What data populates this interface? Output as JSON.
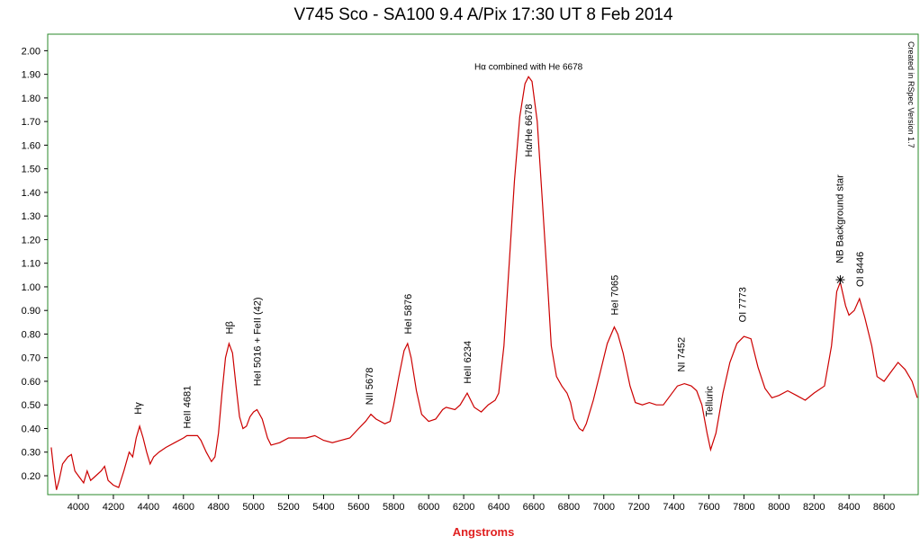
{
  "chart_data": {
    "type": "line",
    "title": "V745 Sco - SA100 9.4 A/Pix 17:30 UT 8 Feb 2014",
    "x_label": "Angstroms",
    "credit": "Created in RSpec Version 1.7",
    "color": "#cc0000",
    "x": [
      3845,
      3860,
      3875,
      3890,
      3910,
      3940,
      3960,
      3980,
      4000,
      4030,
      4050,
      4070,
      4100,
      4130,
      4150,
      4170,
      4200,
      4230,
      4260,
      4290,
      4310,
      4330,
      4350,
      4370,
      4390,
      4410,
      4430,
      4460,
      4500,
      4550,
      4600,
      4620,
      4650,
      4680,
      4700,
      4730,
      4760,
      4780,
      4800,
      4820,
      4840,
      4860,
      4880,
      4900,
      4920,
      4940,
      4960,
      4980,
      5000,
      5020,
      5050,
      5080,
      5100,
      5150,
      5200,
      5300,
      5350,
      5400,
      5450,
      5500,
      5550,
      5600,
      5640,
      5670,
      5700,
      5750,
      5780,
      5800,
      5830,
      5860,
      5880,
      5900,
      5930,
      5960,
      6000,
      6040,
      6080,
      6100,
      6150,
      6180,
      6220,
      6260,
      6300,
      6340,
      6380,
      6400,
      6430,
      6460,
      6490,
      6520,
      6550,
      6570,
      6590,
      6620,
      6650,
      6680,
      6700,
      6730,
      6760,
      6790,
      6810,
      6830,
      6860,
      6880,
      6900,
      6940,
      6980,
      7020,
      7060,
      7080,
      7110,
      7150,
      7180,
      7220,
      7260,
      7300,
      7340,
      7380,
      7420,
      7460,
      7500,
      7530,
      7560,
      7590,
      7610,
      7640,
      7680,
      7720,
      7760,
      7800,
      7840,
      7880,
      7920,
      7960,
      8000,
      8050,
      8100,
      8150,
      8200,
      8260,
      8300,
      8330,
      8350,
      8380,
      8400,
      8430,
      8460,
      8490,
      8530,
      8560,
      8600,
      8640,
      8680,
      8720,
      8760,
      8790
    ],
    "values": [
      0.32,
      0.22,
      0.14,
      0.18,
      0.25,
      0.28,
      0.29,
      0.22,
      0.2,
      0.17,
      0.22,
      0.18,
      0.2,
      0.22,
      0.24,
      0.18,
      0.16,
      0.15,
      0.22,
      0.3,
      0.28,
      0.36,
      0.41,
      0.36,
      0.3,
      0.25,
      0.28,
      0.3,
      0.32,
      0.34,
      0.36,
      0.37,
      0.37,
      0.37,
      0.35,
      0.3,
      0.26,
      0.28,
      0.38,
      0.55,
      0.7,
      0.76,
      0.72,
      0.58,
      0.45,
      0.4,
      0.41,
      0.45,
      0.47,
      0.48,
      0.44,
      0.36,
      0.33,
      0.34,
      0.36,
      0.36,
      0.37,
      0.35,
      0.34,
      0.35,
      0.36,
      0.4,
      0.43,
      0.46,
      0.44,
      0.42,
      0.43,
      0.5,
      0.62,
      0.73,
      0.76,
      0.7,
      0.56,
      0.46,
      0.43,
      0.44,
      0.48,
      0.49,
      0.48,
      0.5,
      0.55,
      0.49,
      0.47,
      0.5,
      0.52,
      0.55,
      0.75,
      1.1,
      1.45,
      1.72,
      1.86,
      1.89,
      1.87,
      1.7,
      1.35,
      1.0,
      0.75,
      0.62,
      0.58,
      0.55,
      0.51,
      0.44,
      0.4,
      0.39,
      0.42,
      0.52,
      0.64,
      0.76,
      0.83,
      0.8,
      0.72,
      0.58,
      0.51,
      0.5,
      0.51,
      0.5,
      0.5,
      0.54,
      0.58,
      0.59,
      0.58,
      0.56,
      0.5,
      0.38,
      0.31,
      0.38,
      0.55,
      0.68,
      0.76,
      0.79,
      0.78,
      0.66,
      0.57,
      0.53,
      0.54,
      0.56,
      0.54,
      0.52,
      0.55,
      0.58,
      0.75,
      0.98,
      1.02,
      0.92,
      0.88,
      0.9,
      0.95,
      0.87,
      0.75,
      0.62,
      0.6,
      0.64,
      0.68,
      0.65,
      0.6,
      0.53
    ],
    "xlim": [
      3825,
      8795
    ],
    "ylim": [
      0.12,
      2.07
    ],
    "xticks": [
      4000,
      4200,
      4400,
      4600,
      4800,
      5000,
      5200,
      5400,
      5600,
      5800,
      6000,
      6200,
      6400,
      6600,
      6800,
      7000,
      7200,
      7400,
      7600,
      7800,
      8000,
      8200,
      8400,
      8600
    ],
    "yticks": [
      {
        "value": 0.2,
        "label": "0.20"
      },
      {
        "value": 0.3,
        "label": "0.30"
      },
      {
        "value": 0.4,
        "label": "0.40"
      },
      {
        "value": 0.5,
        "label": "0.50"
      },
      {
        "value": 0.6,
        "label": "0.60"
      },
      {
        "value": 0.7,
        "label": "0.70"
      },
      {
        "value": 0.8,
        "label": "0.80"
      },
      {
        "value": 0.9,
        "label": "0.90"
      },
      {
        "value": 1,
        "label": "1.00"
      },
      {
        "value": 1.1,
        "label": "1.10"
      },
      {
        "value": 1.2,
        "label": "1.20"
      },
      {
        "value": 1.3,
        "label": "1.30"
      },
      {
        "value": 1.4,
        "label": "1.40"
      },
      {
        "value": 1.5,
        "label": "1.50"
      },
      {
        "value": 1.6,
        "label": "1.60"
      },
      {
        "value": 1.7,
        "label": "1.70"
      },
      {
        "value": 1.8,
        "label": "1.80"
      },
      {
        "value": 1.9,
        "label": "1.90"
      },
      {
        "value": 2,
        "label": "2.00"
      }
    ],
    "annotations": [
      {
        "text": "Hγ",
        "x": 4340,
        "y": 0.46,
        "vertical": true
      },
      {
        "text": "HeII 4681",
        "x": 4620,
        "y": 0.4,
        "vertical": true
      },
      {
        "text": "Hβ",
        "x": 4860,
        "y": 0.8,
        "vertical": true
      },
      {
        "text": "HeI 5016 + FeII (42)",
        "x": 5020,
        "y": 0.58,
        "vertical": true
      },
      {
        "text": "NII 5678",
        "x": 5660,
        "y": 0.5,
        "vertical": true
      },
      {
        "text": "HeI 5876",
        "x": 5880,
        "y": 0.8,
        "vertical": true
      },
      {
        "text": "HeII 6234",
        "x": 6220,
        "y": 0.59,
        "vertical": true
      },
      {
        "text": "Hα/He 6678",
        "x": 6570,
        "y": 1.55,
        "vertical": true
      },
      {
        "text": "Hα combined with He 6678",
        "x": 6570,
        "y": 1.92,
        "vertical": false
      },
      {
        "text": "HeI 7065",
        "x": 7060,
        "y": 0.88,
        "vertical": true
      },
      {
        "text": "NI 7452",
        "x": 7440,
        "y": 0.64,
        "vertical": true
      },
      {
        "text": "Telluric",
        "x": 7600,
        "y": 0.45,
        "vertical": true
      },
      {
        "text": "OI 7773",
        "x": 7790,
        "y": 0.85,
        "vertical": true
      },
      {
        "text": "NB Background star",
        "x": 8345,
        "y": 1.1,
        "vertical": true,
        "marker_y": 1.03
      },
      {
        "text": "OI 8446",
        "x": 8460,
        "y": 1.0,
        "vertical": true
      }
    ]
  }
}
